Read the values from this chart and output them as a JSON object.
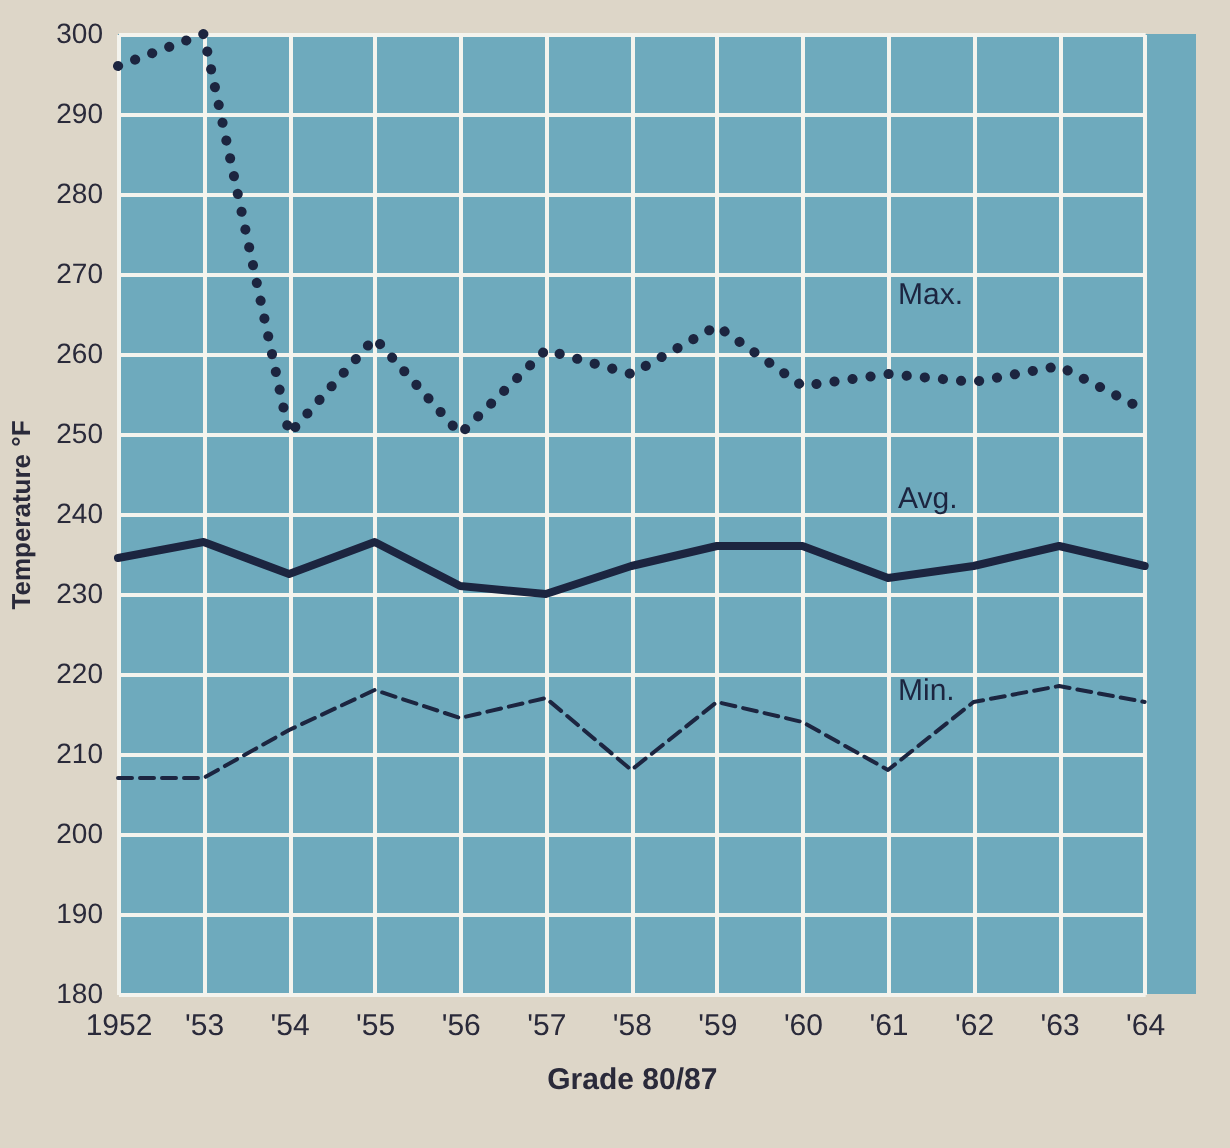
{
  "chart_data": {
    "type": "line",
    "xlabel": "Grade 80/87",
    "ylabel": "Temperature °F",
    "categories": [
      "1952",
      "'53",
      "'54",
      "'55",
      "'56",
      "'57",
      "'58",
      "'59",
      "'60",
      "'61",
      "'62",
      "'63",
      "'64"
    ],
    "series": [
      {
        "name": "Max.",
        "color": "#1c2540",
        "line_style": "dotted",
        "values": [
          296,
          300,
          250,
          262,
          250,
          260.5,
          257.5,
          263.5,
          256,
          257.5,
          256.5,
          258.5,
          253
        ]
      },
      {
        "name": "Avg.",
        "color": "#1c2540",
        "line_style": "solid",
        "values": [
          234.5,
          236.5,
          232.5,
          236.5,
          231,
          230,
          233.5,
          236,
          236,
          232,
          233.5,
          236,
          233.5
        ]
      },
      {
        "name": "Min.",
        "color": "#1c2540",
        "line_style": "dashed",
        "values": [
          207,
          207,
          213,
          218,
          214.5,
          217,
          208,
          216.5,
          214,
          208,
          216.5,
          218.5,
          216.5
        ]
      }
    ],
    "ylim": [
      180,
      300
    ],
    "yticks": [
      180,
      190,
      200,
      210,
      220,
      230,
      240,
      250,
      260,
      270,
      280,
      290,
      300
    ],
    "grid": true,
    "marker": "none"
  }
}
